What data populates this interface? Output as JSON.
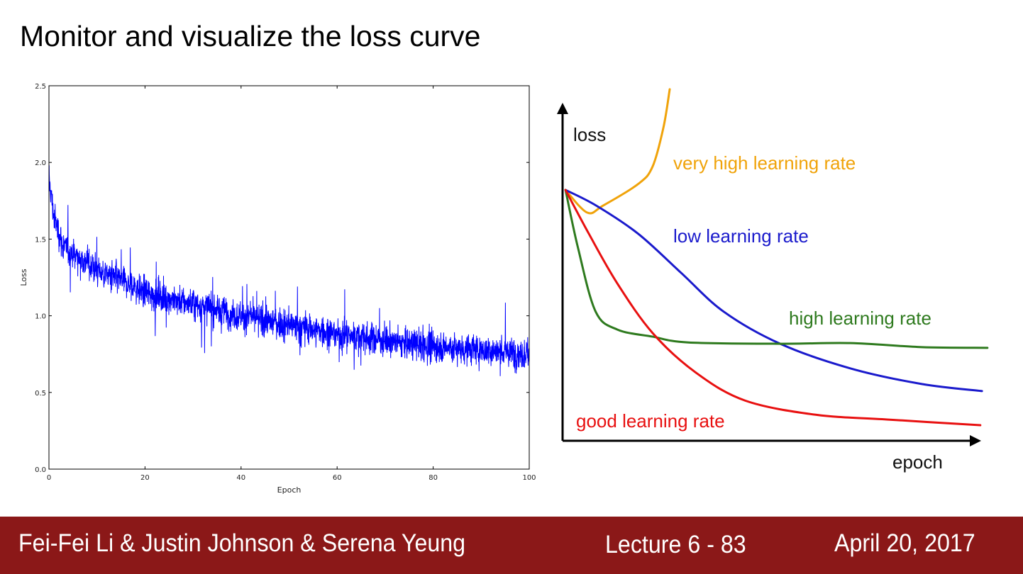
{
  "slide": {
    "title": "Monitor and visualize the loss curve",
    "footer": {
      "authors": "Fei-Fei Li & Justin Johnson & Serena Yeung",
      "lecture": "Lecture 6 - 83",
      "date": "April 20, 2017"
    }
  },
  "chart_data": [
    {
      "type": "line",
      "title": "",
      "xlabel": "Epoch",
      "ylabel": "Loss",
      "xlim": [
        0,
        100
      ],
      "ylim": [
        0,
        2.5
      ],
      "xticks": [
        "0",
        "20",
        "40",
        "60",
        "80",
        "100"
      ],
      "yticks": [
        "0.0",
        "0.5",
        "1.0",
        "1.5",
        "2.0",
        "2.5"
      ],
      "grid": false,
      "series": [
        {
          "name": "loss",
          "color": "#0000ff",
          "trend": [
            [
              0,
              1.9
            ],
            [
              1,
              1.65
            ],
            [
              3,
              1.45
            ],
            [
              10,
              1.3
            ],
            [
              20,
              1.15
            ],
            [
              40,
              1.0
            ],
            [
              60,
              0.88
            ],
            [
              80,
              0.8
            ],
            [
              100,
              0.75
            ]
          ],
          "noise_std": 0.1,
          "num_points": 2500
        }
      ]
    },
    {
      "type": "line",
      "title": "",
      "xlabel": "epoch",
      "ylabel": "loss",
      "xlim": [
        0,
        100
      ],
      "ylim": [
        0,
        100
      ],
      "series": [
        {
          "name": "very high learning rate",
          "color": "#f0a30a",
          "points": [
            [
              0.7,
              74.2
            ],
            [
              5.9,
              67.5
            ],
            [
              9.7,
              69.6
            ],
            [
              18.1,
              76
            ],
            [
              21.5,
              81.1
            ],
            [
              24.1,
              92.7
            ],
            [
              25.6,
              104
            ]
          ]
        },
        {
          "name": "low learning rate",
          "color": "#1a1acc",
          "points": [
            [
              0.7,
              74.2
            ],
            [
              8,
              69.6
            ],
            [
              18.1,
              61.2
            ],
            [
              28.3,
              49.7
            ],
            [
              38.5,
              38.2
            ],
            [
              52,
              28.7
            ],
            [
              68.8,
              21.4
            ],
            [
              85.8,
              16.8
            ],
            [
              100.2,
              14.7
            ]
          ]
        },
        {
          "name": "high learning rate",
          "color": "#2e7a1e",
          "points": [
            [
              0.7,
              74.2
            ],
            [
              3.7,
              57
            ],
            [
              7.9,
              38.2
            ],
            [
              13.1,
              32.9
            ],
            [
              21.5,
              30.8
            ],
            [
              30,
              29.1
            ],
            [
              52,
              28.7
            ],
            [
              68.8,
              28.9
            ],
            [
              85.8,
              27.7
            ],
            [
              101.5,
              27.5
            ]
          ]
        },
        {
          "name": "good learning rate",
          "color": "#e81010",
          "points": [
            [
              0.7,
              74.2
            ],
            [
              6.3,
              61.2
            ],
            [
              13.1,
              46.5
            ],
            [
              21.5,
              31.9
            ],
            [
              31.7,
              20.3
            ],
            [
              43.6,
              11.9
            ],
            [
              60.5,
              7.7
            ],
            [
              77.5,
              6.3
            ],
            [
              99.8,
              4.6
            ]
          ]
        }
      ]
    }
  ]
}
